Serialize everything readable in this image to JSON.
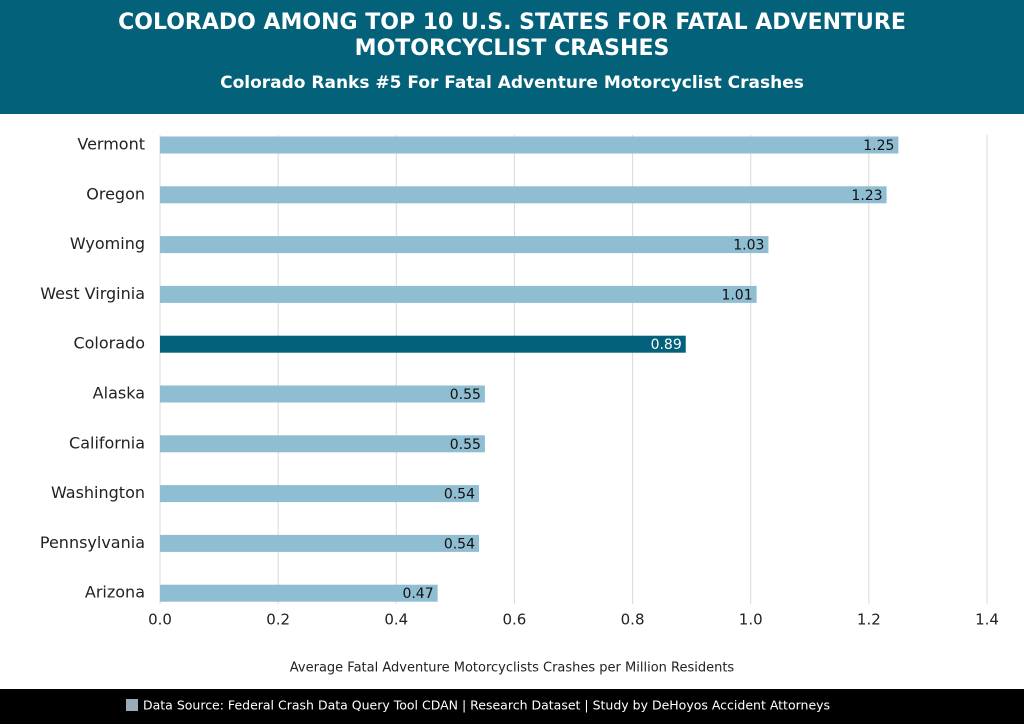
{
  "chart_data": {
    "type": "bar",
    "orientation": "horizontal",
    "title": "COLORADO AMONG TOP 10 U.S. STATES FOR FATAL ADVENTURE MOTORCYCLIST CRASHES",
    "subtitle": "Colorado Ranks #5 For Fatal Adventure Motorcyclist Crashes",
    "categories": [
      "Vermont",
      "Oregon",
      "Wyoming",
      "West Virginia",
      "Colorado",
      "Alaska",
      "California",
      "Washington",
      "Pennsylvania",
      "Arizona"
    ],
    "values": [
      1.25,
      1.23,
      1.03,
      1.01,
      0.89,
      0.55,
      0.55,
      0.54,
      0.54,
      0.47
    ],
    "colors": [
      "#8fbdd2",
      "#8fbdd2",
      "#8fbdd2",
      "#8fbdd2",
      "#03617b",
      "#8fbdd2",
      "#8fbdd2",
      "#8fbdd2",
      "#8fbdd2",
      "#8fbdd2"
    ],
    "xlim": [
      0,
      1.4
    ],
    "xticks": [
      {
        "value": 0,
        "label": "0.0"
      },
      0.2,
      0.4,
      0.6,
      0.8,
      {
        "value": 1,
        "label": "1.0"
      },
      1.2,
      1.4
    ],
    "grid": true,
    "xlabel": "Average Fatal Adventure Motorcyclists Crashes per Million Residents",
    "source": "Data Source: Federal Crash Data Query Tool CDAN | Research Dataset | Study by DeHoyos Accident Attorneys"
  }
}
